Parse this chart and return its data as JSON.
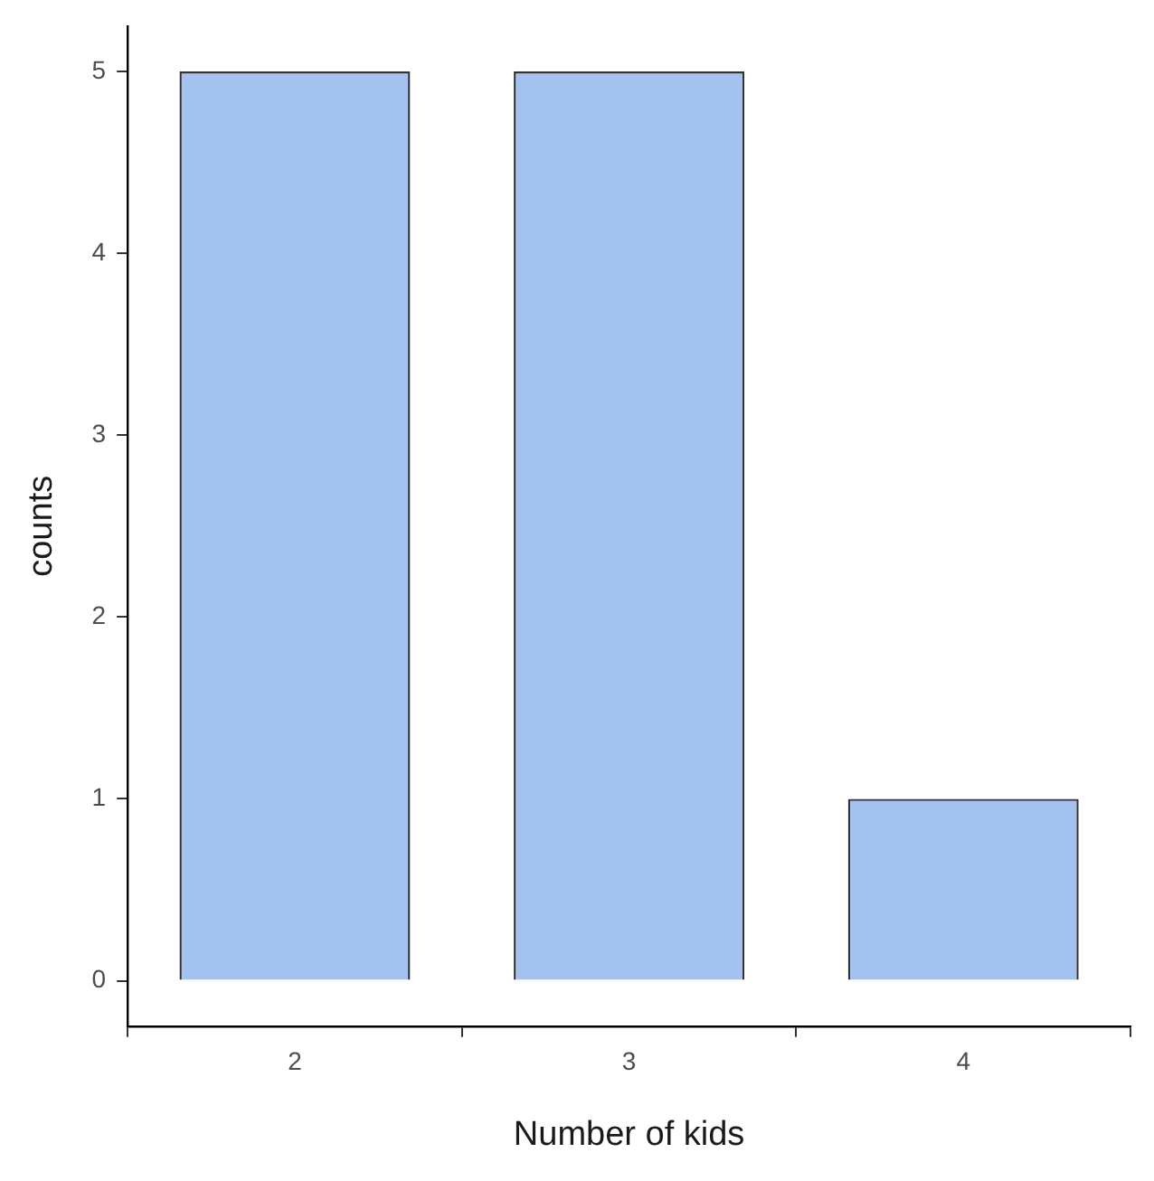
{
  "chart_data": {
    "type": "bar",
    "xlabel": "Number of kids",
    "ylabel": "counts",
    "categories": [
      "2",
      "3",
      "4"
    ],
    "values": [
      5,
      5,
      1
    ],
    "color": "#a4c2f0",
    "ylim": [
      -0.25,
      5.25
    ],
    "yticks": [
      0,
      1,
      2,
      3,
      4,
      5
    ],
    "grid": false,
    "legend": false
  }
}
